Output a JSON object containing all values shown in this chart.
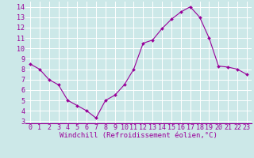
{
  "x": [
    0,
    1,
    2,
    3,
    4,
    5,
    6,
    7,
    8,
    9,
    10,
    11,
    12,
    13,
    14,
    15,
    16,
    17,
    18,
    19,
    20,
    21,
    22,
    23
  ],
  "y": [
    8.5,
    8.0,
    7.0,
    6.5,
    5.0,
    4.5,
    4.0,
    3.3,
    5.0,
    5.5,
    6.5,
    8.0,
    10.5,
    10.8,
    11.9,
    12.8,
    13.5,
    14.0,
    13.0,
    11.0,
    8.3,
    8.2,
    8.0,
    7.5
  ],
  "line_color": "#990099",
  "marker": "D",
  "marker_size": 2.0,
  "bg_color": "#cce8e8",
  "grid_color": "#ffffff",
  "xlabel": "Windchill (Refroidissement éolien,°C)",
  "xlabel_color": "#990099",
  "xlabel_fontsize": 6.5,
  "tick_color": "#990099",
  "tick_fontsize": 6.0,
  "ylim": [
    2.8,
    14.5
  ],
  "xlim": [
    -0.5,
    23.5
  ],
  "yticks": [
    3,
    4,
    5,
    6,
    7,
    8,
    9,
    10,
    11,
    12,
    13,
    14
  ],
  "xticks": [
    0,
    1,
    2,
    3,
    4,
    5,
    6,
    7,
    8,
    9,
    10,
    11,
    12,
    13,
    14,
    15,
    16,
    17,
    18,
    19,
    20,
    21,
    22,
    23
  ],
  "xtick_labels": [
    "0",
    "1",
    "2",
    "3",
    "4",
    "5",
    "6",
    "7",
    "8",
    "9",
    "10",
    "11",
    "12",
    "13",
    "14",
    "15",
    "16",
    "17",
    "18",
    "19",
    "20",
    "21",
    "22",
    "23"
  ]
}
